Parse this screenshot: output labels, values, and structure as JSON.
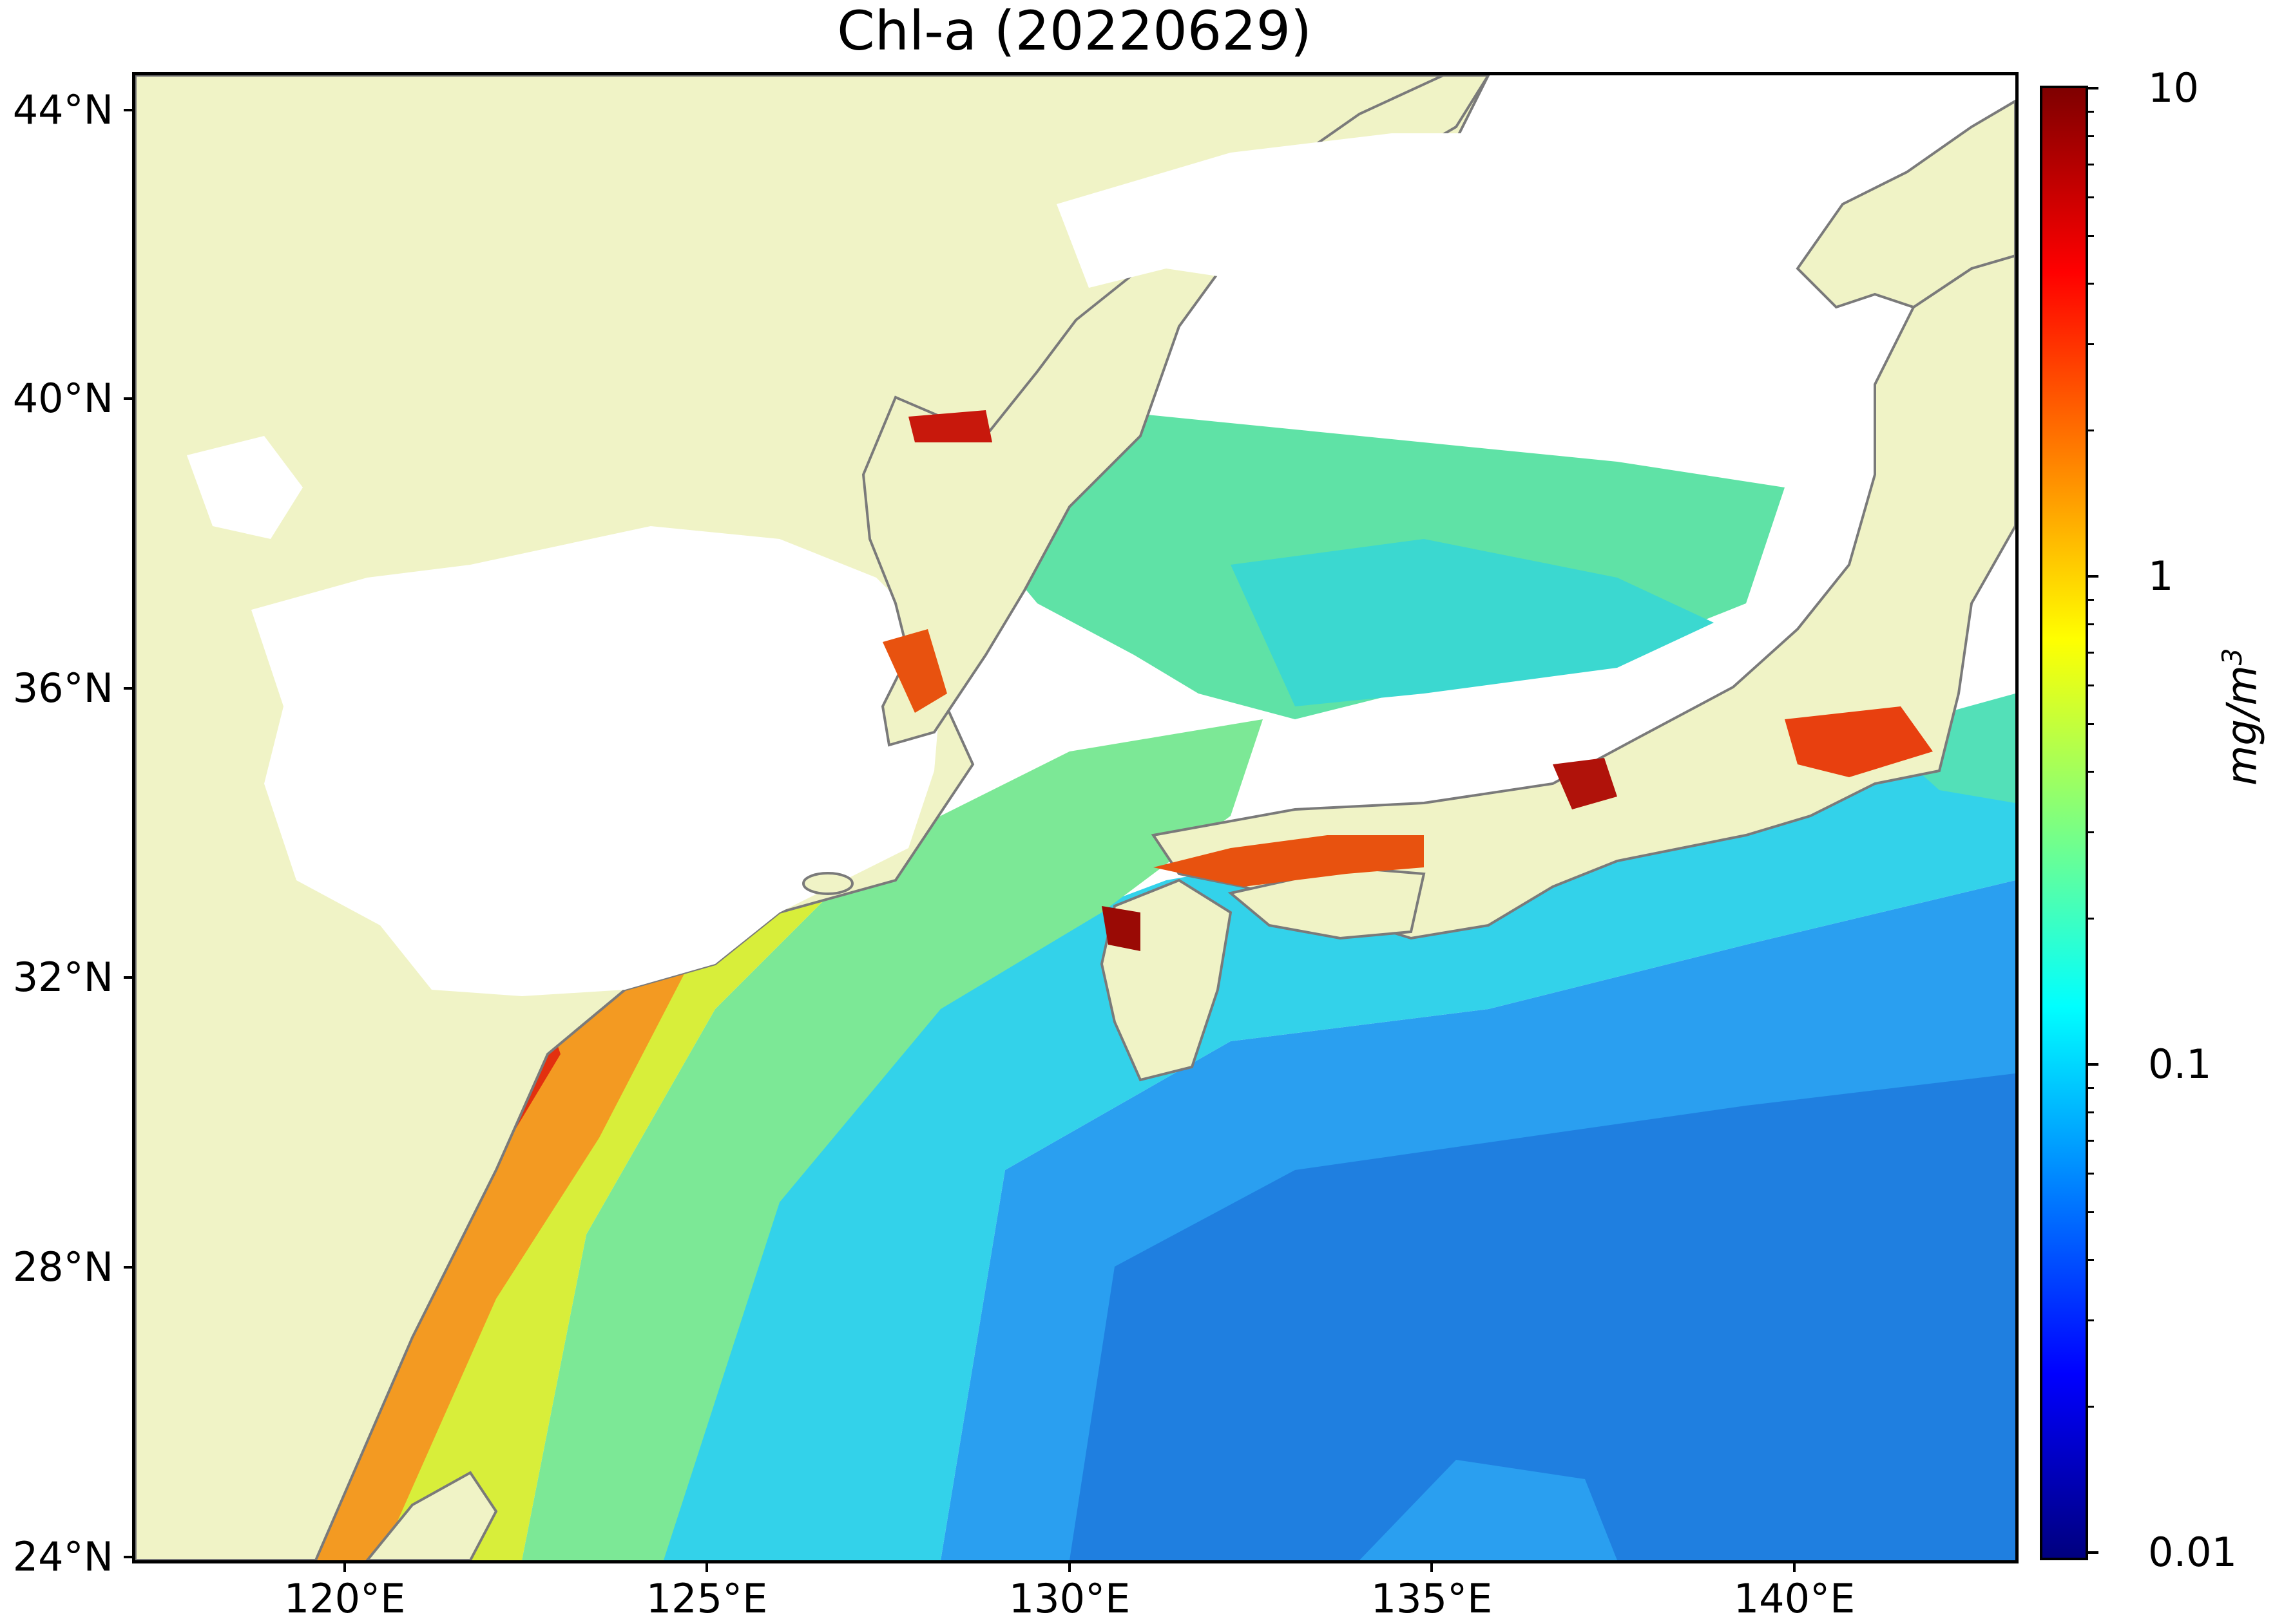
{
  "title": "Chl-a (20220629)",
  "axes": {
    "lat_ticks": [
      "44°N",
      "40°N",
      "36°N",
      "32°N",
      "28°N",
      "24°N"
    ],
    "lon_ticks": [
      "120°E",
      "125°E",
      "130°E",
      "135°E",
      "140°E"
    ]
  },
  "colorbar": {
    "labels": [
      "10",
      "1",
      "0.1",
      "0.01"
    ],
    "unit_label": "mg/m",
    "unit_superscript": "3",
    "scale": "log",
    "range": [
      0.01,
      10
    ],
    "colormap": "jet",
    "colors": [
      "#00007f",
      "#0000ff",
      "#007fff",
      "#00ffff",
      "#7fff7f",
      "#ffff00",
      "#ff7f00",
      "#ff0000",
      "#7f0000"
    ]
  },
  "map": {
    "extent_lon": [
      117,
      143
    ],
    "extent_lat": [
      24,
      44.5
    ],
    "land_color": "#f0f3c6",
    "coast_color": "#7a7a7a",
    "no_data_color": "#ffffff",
    "region_colors": {
      "open_ocean_low": "#1f8fe8",
      "ocean_mid": "#2fd6e6",
      "ocean_green": "#6fe89a",
      "shelf_yellow": "#d6ee3a",
      "coastal_orange": "#f49a1e",
      "coastal_red": "#e0280e",
      "estuary_darkred": "#9a0a05"
    }
  }
}
